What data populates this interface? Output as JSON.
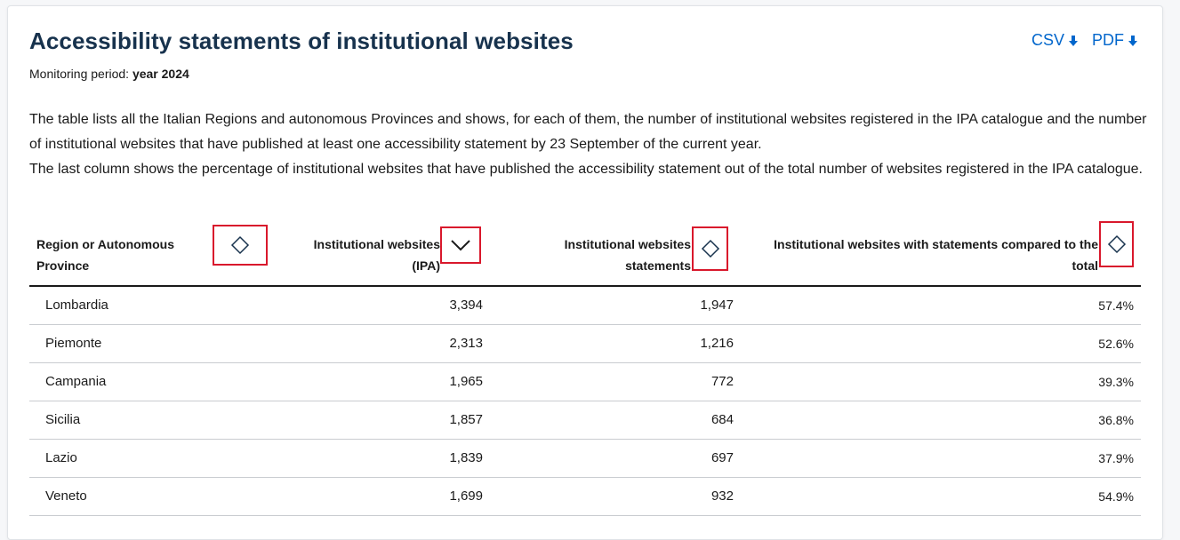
{
  "header": {
    "title": "Accessibility statements of institutional websites",
    "downloads": [
      {
        "label": "CSV",
        "icon": "arrow-down-icon"
      },
      {
        "label": "PDF",
        "icon": "arrow-down-icon"
      }
    ],
    "period_label": "Monitoring period:",
    "period_value": "year 2024"
  },
  "description": {
    "p1": "The table lists all the Italian Regions and autonomous Provinces and shows, for each of them, the number of institutional websites registered in the IPA catalogue and the number of institutional websites that have published at least one accessibility statement by 23 September of the current year.",
    "p2": "The last column shows the percentage of institutional websites that have published the accessibility statement out of the total number of websites registered in the IPA catalogue."
  },
  "table": {
    "columns": [
      {
        "line1": "Region or Autonomous",
        "line2": "Province",
        "sort": "unsorted",
        "sort_icon": "sort-diamond-icon"
      },
      {
        "line1": "Institutional websites",
        "line2": "(IPA)",
        "sort": "descending",
        "sort_icon": "chevron-down-icon"
      },
      {
        "line1": "Institutional websites",
        "line2": "statements",
        "sort": "unsorted",
        "sort_icon": "sort-diamond-icon"
      },
      {
        "line1": "Institutional websites with statements compared to the",
        "line2": "total",
        "sort": "unsorted",
        "sort_icon": "sort-diamond-icon"
      }
    ],
    "rows": [
      {
        "region": "Lombardia",
        "ipa": "3,394",
        "statements": "1,947",
        "percent": "57.4%"
      },
      {
        "region": "Piemonte",
        "ipa": "2,313",
        "statements": "1,216",
        "percent": "52.6%"
      },
      {
        "region": "Campania",
        "ipa": "1,965",
        "statements": "772",
        "percent": "39.3%"
      },
      {
        "region": "Sicilia",
        "ipa": "1,857",
        "statements": "684",
        "percent": "36.8%"
      },
      {
        "region": "Lazio",
        "ipa": "1,839",
        "statements": "697",
        "percent": "37.9%"
      },
      {
        "region": "Veneto",
        "ipa": "1,699",
        "statements": "932",
        "percent": "54.9%"
      }
    ]
  },
  "colors": {
    "title": "#17324d",
    "link": "#0066cc",
    "highlight": "#d9182c"
  }
}
